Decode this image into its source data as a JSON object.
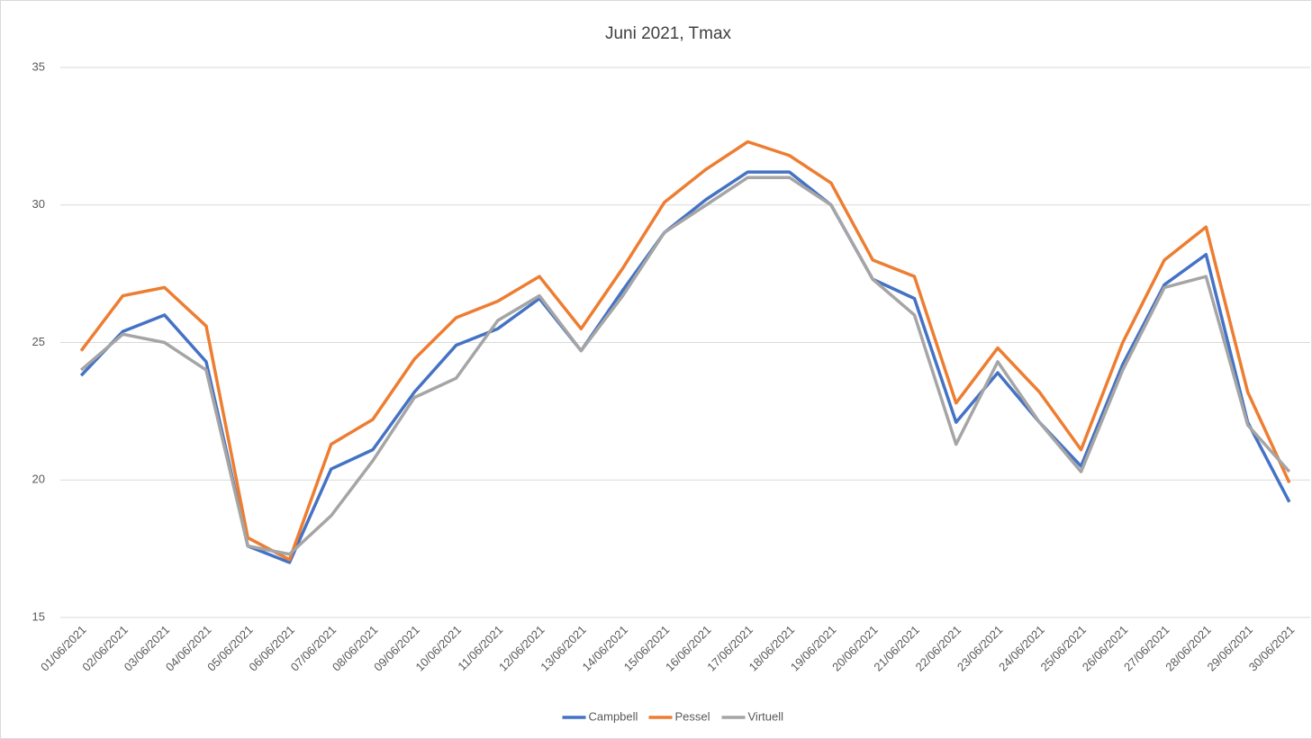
{
  "chart_data": {
    "type": "line",
    "title": "Juni 2021, Tmax",
    "categories": [
      "01/06/2021",
      "02/06/2021",
      "03/06/2021",
      "04/06/2021",
      "05/06/2021",
      "06/06/2021",
      "07/06/2021",
      "08/06/2021",
      "09/06/2021",
      "10/06/2021",
      "11/06/2021",
      "12/06/2021",
      "13/06/2021",
      "14/06/2021",
      "15/06/2021",
      "16/06/2021",
      "17/06/2021",
      "18/06/2021",
      "19/06/2021",
      "20/06/2021",
      "21/06/2021",
      "22/06/2021",
      "23/06/2021",
      "24/06/2021",
      "25/06/2021",
      "26/06/2021",
      "27/06/2021",
      "28/06/2021",
      "29/06/2021",
      "30/06/2021"
    ],
    "series": [
      {
        "name": "Campbell",
        "color": "#4472c4",
        "values": [
          23.8,
          25.4,
          26.0,
          24.3,
          17.6,
          17.0,
          20.4,
          21.1,
          23.2,
          24.9,
          25.5,
          26.6,
          24.7,
          26.9,
          29.0,
          30.2,
          31.2,
          31.2,
          30.0,
          27.3,
          26.6,
          22.1,
          23.9,
          22.1,
          20.5,
          24.2,
          27.1,
          28.2,
          22.1,
          19.2
        ]
      },
      {
        "name": "Pessel",
        "color": "#ed7d31",
        "values": [
          24.7,
          26.7,
          27.0,
          25.6,
          17.9,
          17.1,
          21.3,
          22.2,
          24.4,
          25.9,
          26.5,
          27.4,
          25.5,
          27.7,
          30.1,
          31.3,
          32.3,
          31.8,
          30.8,
          28.0,
          27.4,
          22.8,
          24.8,
          23.2,
          21.1,
          25.0,
          28.0,
          29.2,
          23.2,
          19.9
        ]
      },
      {
        "name": "Virtuell",
        "color": "#a5a5a5",
        "values": [
          24.0,
          25.3,
          25.0,
          24.0,
          17.6,
          17.3,
          18.7,
          20.7,
          23.0,
          23.7,
          25.8,
          26.7,
          24.7,
          26.7,
          29.0,
          30.0,
          31.0,
          31.0,
          30.0,
          27.3,
          26.0,
          21.3,
          24.3,
          22.1,
          20.3,
          24.0,
          27.0,
          27.4,
          22.0,
          20.3
        ]
      }
    ],
    "ylim": [
      15,
      35
    ],
    "yticks": [
      15,
      20,
      25,
      30,
      35
    ],
    "grid": true,
    "legend": "bottom"
  }
}
